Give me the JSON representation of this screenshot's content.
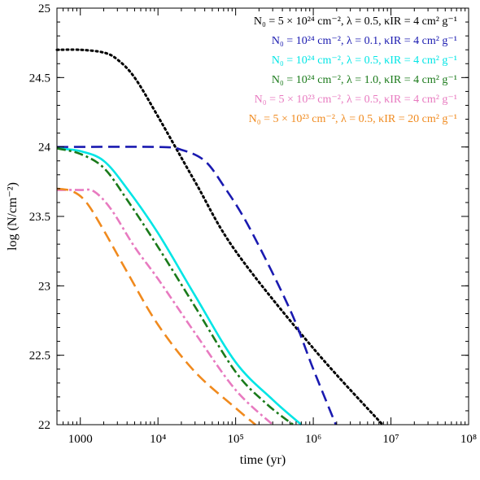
{
  "chart_data": {
    "type": "line",
    "title": "",
    "xlabel": "time (yr)",
    "ylabel": "log (N/cm⁻²)",
    "xscale": "log",
    "xlim": [
      500,
      100000000
    ],
    "ylim": [
      22,
      25
    ],
    "grid": false,
    "legend_position": "top-right",
    "x_ticks": [
      {
        "value": 1000,
        "label": "1000"
      },
      {
        "value": 10000,
        "label": "10⁴"
      },
      {
        "value": 100000,
        "label": "10⁵"
      },
      {
        "value": 1000000,
        "label": "10⁶"
      },
      {
        "value": 10000000,
        "label": "10⁷"
      },
      {
        "value": 100000000,
        "label": "10⁸"
      }
    ],
    "y_ticks": [
      {
        "value": 22,
        "label": "22"
      },
      {
        "value": 22.5,
        "label": "22.5"
      },
      {
        "value": 23,
        "label": "23"
      },
      {
        "value": 23.5,
        "label": "23.5"
      },
      {
        "value": 24,
        "label": "24"
      },
      {
        "value": 24.5,
        "label": "24.5"
      },
      {
        "value": 25,
        "label": "25"
      }
    ],
    "series": [
      {
        "name": "N₀ = 5 × 10²⁴ cm⁻², λ = 0.5, κIR = 4 cm² g⁻¹",
        "color": "#000000",
        "dash": "dotted",
        "points": [
          [
            500,
            24.7
          ],
          [
            1000,
            24.7
          ],
          [
            2000,
            24.68
          ],
          [
            3000,
            24.63
          ],
          [
            5000,
            24.5
          ],
          [
            10000,
            24.22
          ],
          [
            30000,
            23.75
          ],
          [
            100000,
            23.25
          ],
          [
            1000000,
            22.55
          ],
          [
            7800000,
            22.0
          ]
        ]
      },
      {
        "name": "N₀ = 10²⁴ cm⁻², λ = 0.1, κIR = 4 cm² g⁻¹",
        "color": "#1a1ab0",
        "dash": "long-dash",
        "points": [
          [
            500,
            24.0
          ],
          [
            10000,
            24.0
          ],
          [
            20000,
            23.98
          ],
          [
            40000,
            23.9
          ],
          [
            70000,
            23.72
          ],
          [
            150000,
            23.42
          ],
          [
            500000,
            22.83
          ],
          [
            1000000,
            22.4
          ],
          [
            1950000,
            22.0
          ]
        ]
      },
      {
        "name": "N₀ = 10²⁴ cm⁻², λ = 0.5, κIR = 4 cm² g⁻¹",
        "color": "#00e5e5",
        "dash": "solid",
        "points": [
          [
            500,
            23.99
          ],
          [
            1000,
            23.97
          ],
          [
            2000,
            23.9
          ],
          [
            4000,
            23.7
          ],
          [
            10000,
            23.38
          ],
          [
            30000,
            22.93
          ],
          [
            100000,
            22.45
          ],
          [
            300000,
            22.18
          ],
          [
            700000,
            22.0
          ]
        ]
      },
      {
        "name": "N₀ = 10²⁴ cm⁻², λ = 1.0, κIR = 4 cm² g⁻¹",
        "color": "#1a7a1a",
        "dash": "dash-dot",
        "points": [
          [
            500,
            23.99
          ],
          [
            1000,
            23.95
          ],
          [
            2000,
            23.85
          ],
          [
            4000,
            23.62
          ],
          [
            10000,
            23.28
          ],
          [
            30000,
            22.85
          ],
          [
            100000,
            22.38
          ],
          [
            250000,
            22.15
          ],
          [
            550000,
            22.0
          ]
        ]
      },
      {
        "name": "N₀ = 5 × 10²³ cm⁻², λ = 0.5, κIR = 4 cm² g⁻¹",
        "color": "#e87ac0",
        "dash": "dash-dot",
        "points": [
          [
            500,
            23.69
          ],
          [
            1000,
            23.69
          ],
          [
            1500,
            23.68
          ],
          [
            2500,
            23.55
          ],
          [
            5000,
            23.28
          ],
          [
            10000,
            23.05
          ],
          [
            30000,
            22.66
          ],
          [
            100000,
            22.25
          ],
          [
            300000,
            22.0
          ]
        ]
      },
      {
        "name": "N₀ = 5 × 10²³ cm⁻², λ = 0.5, κIR = 20 cm² g⁻¹",
        "color": "#f08a1e",
        "dash": "long-dash",
        "points": [
          [
            500,
            23.7
          ],
          [
            800,
            23.68
          ],
          [
            1200,
            23.6
          ],
          [
            2000,
            23.4
          ],
          [
            4000,
            23.1
          ],
          [
            10000,
            22.72
          ],
          [
            30000,
            22.38
          ],
          [
            100000,
            22.12
          ],
          [
            180000,
            22.0
          ]
        ]
      }
    ]
  }
}
